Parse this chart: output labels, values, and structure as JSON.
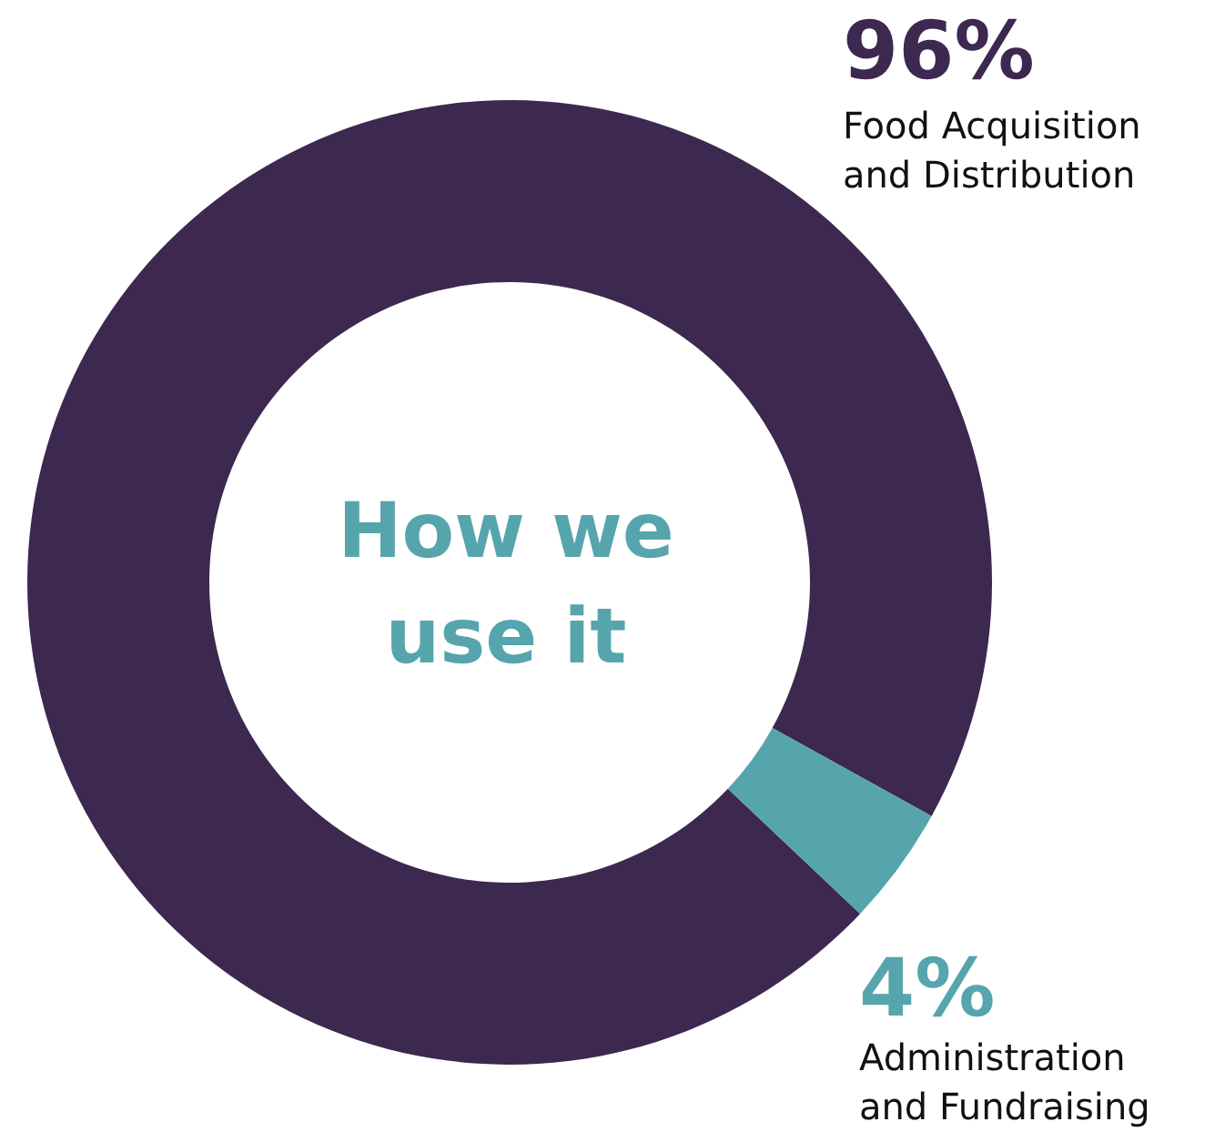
{
  "chart_data": {
    "type": "donut",
    "title": "How we use it",
    "categories": [
      "Food Acquisition and Distribution",
      "Administration and Fundraising"
    ],
    "values": [
      96,
      4
    ],
    "colors": [
      "#3d2850",
      "#56a5ad"
    ],
    "value_labels": [
      "96%",
      "4%"
    ]
  }
}
